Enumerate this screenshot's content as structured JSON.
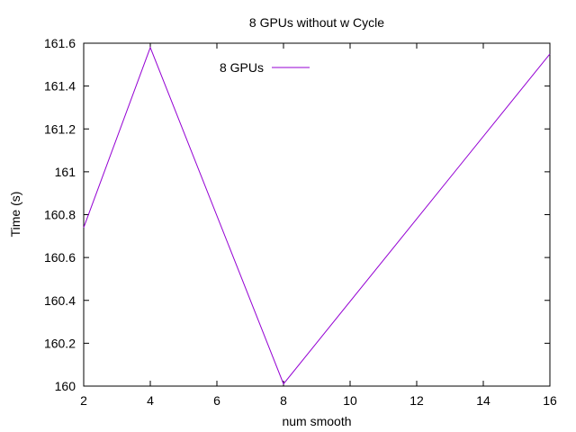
{
  "chart_data": {
    "type": "line",
    "title": "8 GPUs without w Cycle",
    "xlabel": "num smooth",
    "ylabel": "Time (s)",
    "xlim": [
      2,
      16
    ],
    "ylim": [
      160,
      161.6
    ],
    "xticks": [
      2,
      4,
      6,
      8,
      10,
      12,
      14,
      16
    ],
    "yticks": [
      160,
      160.2,
      160.4,
      160.6,
      160.8,
      161,
      161.2,
      161.4,
      161.6
    ],
    "xtick_labels": [
      "2",
      "4",
      "6",
      "8",
      "10",
      "12",
      "14",
      "16"
    ],
    "ytick_labels": [
      "160",
      "160.2",
      "160.4",
      "160.6",
      "160.8",
      "161",
      "161.2",
      "161.4",
      "161.6"
    ],
    "grid": false,
    "legend_position": "top-left",
    "series": [
      {
        "name": "8 GPUs",
        "color": "#9400d3",
        "x": [
          2,
          4,
          8,
          16
        ],
        "y": [
          160.74,
          161.58,
          160.01,
          161.55
        ]
      }
    ]
  }
}
